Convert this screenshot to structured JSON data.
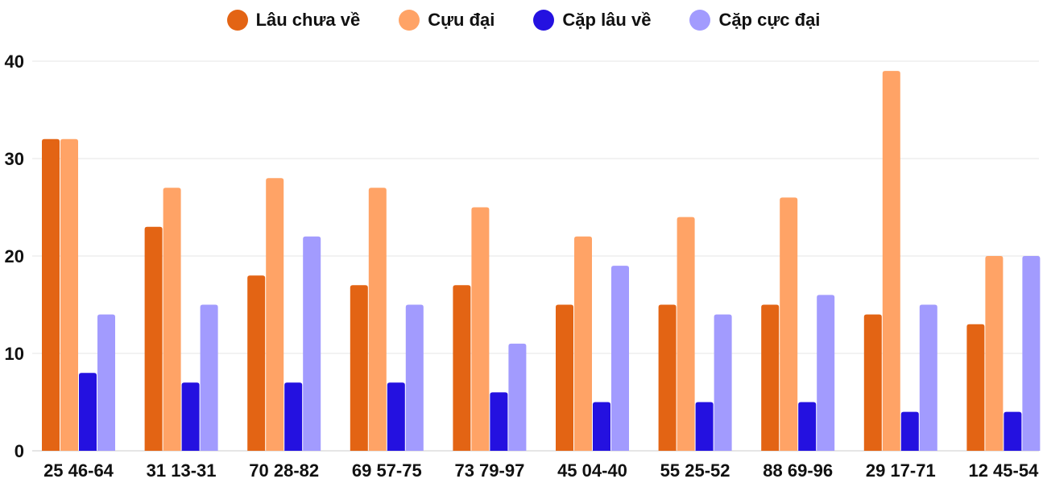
{
  "chart_data": {
    "type": "bar",
    "categories": [
      "25 46-64",
      "31 13-31",
      "70 28-82",
      "69 57-75",
      "73 79-97",
      "45 04-40",
      "55 25-52",
      "88 69-96",
      "29 17-71",
      "12 45-54"
    ],
    "series": [
      {
        "name": "Lâu chưa về",
        "color": "#e36414",
        "values": [
          32,
          23,
          18,
          17,
          17,
          15,
          15,
          15,
          14,
          13
        ]
      },
      {
        "name": "Cựu đại",
        "color": "#ffa366",
        "values": [
          32,
          27,
          28,
          27,
          25,
          22,
          24,
          26,
          39,
          20
        ]
      },
      {
        "name": "Cặp lâu về",
        "color": "#2411e0",
        "values": [
          8,
          7,
          7,
          7,
          6,
          5,
          5,
          5,
          4,
          4
        ]
      },
      {
        "name": "Cặp cực đại",
        "color": "#a29bfe",
        "values": [
          14,
          15,
          22,
          15,
          11,
          19,
          14,
          16,
          15,
          20
        ]
      }
    ],
    "yticks": [
      0,
      10,
      20,
      30,
      40
    ],
    "ylim": [
      0,
      40
    ],
    "grid": true,
    "legend": "top"
  }
}
